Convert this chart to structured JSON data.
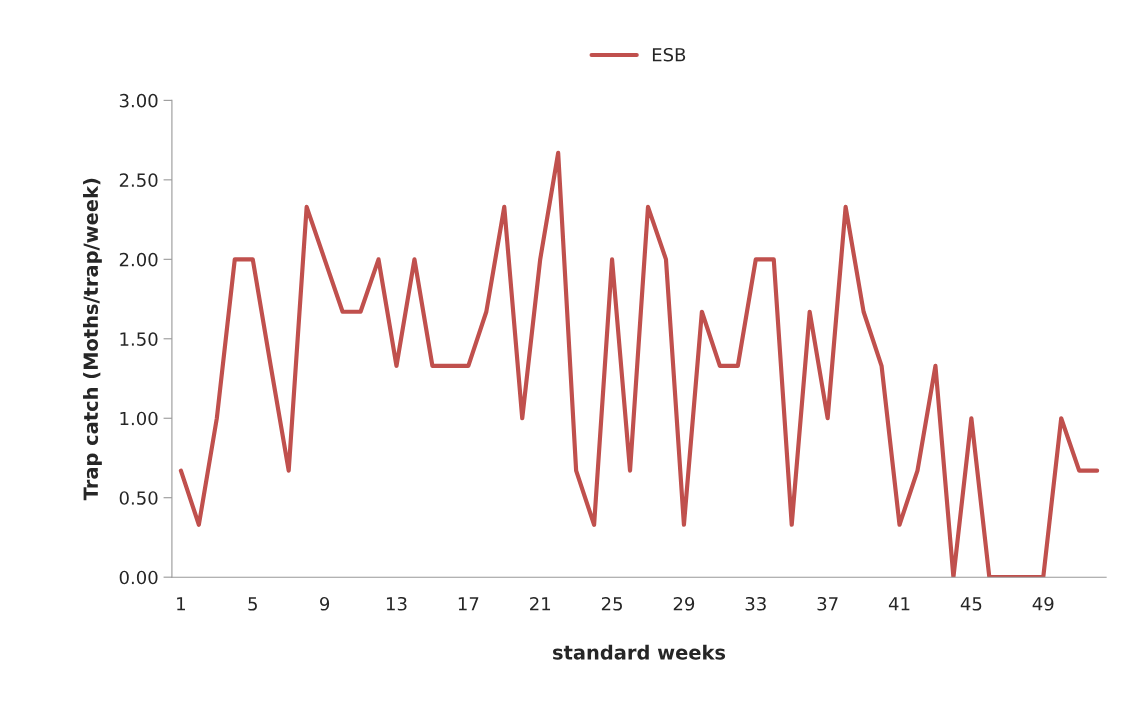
{
  "chart_data": {
    "type": "line",
    "xlabel": "standard weeks",
    "ylabel": "Trap catch (Moths/trap/week)",
    "categories": [
      "1",
      null,
      null,
      null,
      "5",
      null,
      null,
      null,
      "9",
      null,
      null,
      null,
      "13",
      null,
      null,
      null,
      "17",
      null,
      null,
      null,
      "21",
      null,
      null,
      null,
      "25",
      null,
      null,
      null,
      "29",
      null,
      null,
      null,
      "33",
      null,
      null,
      null,
      "37",
      null,
      null,
      null,
      "41",
      null,
      null,
      null,
      "45",
      null,
      null,
      null,
      "49",
      null,
      null,
      null
    ],
    "series": [
      {
        "name": "ESB",
        "color": "#c0504d",
        "values": [
          0.67,
          0.33,
          1.0,
          2.0,
          2.0,
          1.33,
          0.67,
          2.33,
          2.0,
          1.67,
          1.67,
          2.0,
          1.33,
          2.0,
          1.33,
          1.33,
          1.33,
          1.67,
          2.33,
          1.0,
          2.0,
          2.67,
          0.67,
          0.33,
          2.0,
          0.67,
          2.33,
          2.0,
          0.33,
          1.67,
          1.33,
          1.33,
          2.0,
          2.0,
          0.33,
          1.67,
          1.0,
          2.33,
          1.67,
          1.33,
          0.33,
          0.67,
          1.33,
          0.0,
          1.0,
          0.0,
          0.0,
          0.0,
          0.0,
          1.0,
          0.67,
          0.67
        ]
      }
    ],
    "ylim": [
      0,
      3
    ],
    "yticks": [
      {
        "value": 0,
        "label": "0.00"
      },
      {
        "value": 0.5,
        "label": "0.50"
      },
      {
        "value": 1,
        "label": "1.00"
      },
      {
        "value": 1.5,
        "label": "1.50"
      },
      {
        "value": 2,
        "label": "2.00"
      },
      {
        "value": 2.5,
        "label": "2.50"
      },
      {
        "value": 3,
        "label": "3.00"
      }
    ],
    "legend": "top",
    "grid": false,
    "marker": "none",
    "line_style": "solid"
  }
}
